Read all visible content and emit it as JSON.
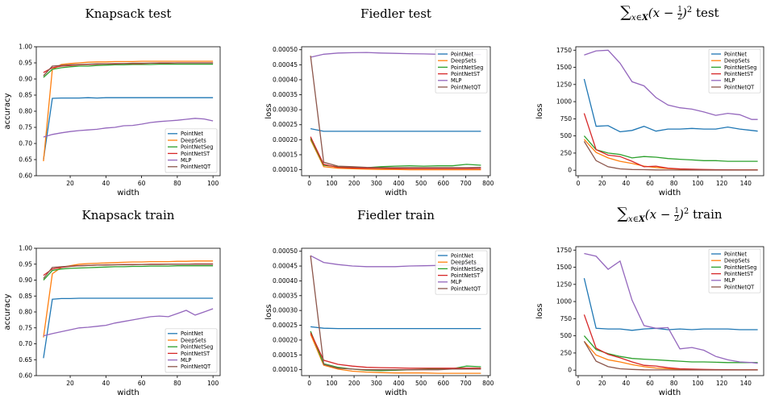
{
  "figure": {
    "colors": {
      "PointNet": "#1f77b4",
      "DeepSets": "#ff7f0e",
      "PointNetSeg": "#2ca02c",
      "PointNetST": "#d62728",
      "MLP": "#9467bd",
      "PointNetQT": "#8c564b"
    }
  },
  "chart_data": [
    {
      "type": "line",
      "title": "Knapsack test",
      "xlabel": "width",
      "ylabel": "accuracy",
      "xlim": [
        1,
        104
      ],
      "ylim": [
        0.6,
        1.0
      ],
      "xticks": [
        20,
        40,
        60,
        80,
        100
      ],
      "yticks": [
        0.6,
        0.65,
        0.7,
        0.75,
        0.8,
        0.85,
        0.9,
        0.95,
        1.0
      ],
      "ytick_labels": [
        "0.60",
        "0.65",
        "0.70",
        "0.75",
        "0.80",
        "0.85",
        "0.90",
        "0.95",
        "1.00"
      ],
      "legend": "lower-right",
      "x": [
        5,
        10,
        15,
        20,
        25,
        30,
        35,
        40,
        45,
        50,
        55,
        60,
        65,
        70,
        75,
        80,
        85,
        90,
        95,
        100
      ],
      "series": [
        {
          "name": "PointNet",
          "values": [
            0.65,
            0.84,
            0.841,
            0.841,
            0.841,
            0.842,
            0.841,
            0.842,
            0.842,
            0.842,
            0.842,
            0.842,
            0.842,
            0.842,
            0.842,
            0.842,
            0.842,
            0.842,
            0.842,
            0.842
          ]
        },
        {
          "name": "DeepSets",
          "values": [
            0.645,
            0.93,
            0.945,
            0.948,
            0.95,
            0.952,
            0.953,
            0.953,
            0.954,
            0.954,
            0.954,
            0.955,
            0.955,
            0.955,
            0.955,
            0.955,
            0.955,
            0.955,
            0.955,
            0.955
          ]
        },
        {
          "name": "PointNetSeg",
          "values": [
            0.905,
            0.93,
            0.935,
            0.938,
            0.94,
            0.94,
            0.942,
            0.943,
            0.944,
            0.944,
            0.945,
            0.945,
            0.945,
            0.946,
            0.946,
            0.946,
            0.946,
            0.946,
            0.946,
            0.946
          ]
        },
        {
          "name": "PointNetST",
          "values": [
            0.92,
            0.935,
            0.94,
            0.942,
            0.944,
            0.945,
            0.946,
            0.947,
            0.947,
            0.948,
            0.948,
            0.948,
            0.949,
            0.949,
            0.949,
            0.95,
            0.95,
            0.95,
            0.95,
            0.95
          ]
        },
        {
          "name": "MLP",
          "values": [
            0.72,
            0.728,
            0.733,
            0.737,
            0.74,
            0.742,
            0.744,
            0.748,
            0.75,
            0.755,
            0.756,
            0.76,
            0.765,
            0.768,
            0.77,
            0.772,
            0.775,
            0.778,
            0.776,
            0.77
          ]
        },
        {
          "name": "PointNetQT",
          "values": [
            0.91,
            0.94,
            0.942,
            0.944,
            0.945,
            0.946,
            0.947,
            0.947,
            0.948,
            0.948,
            0.949,
            0.949,
            0.949,
            0.95,
            0.95,
            0.95,
            0.95,
            0.95,
            0.95,
            0.95
          ]
        }
      ]
    },
    {
      "type": "line",
      "title": "Fiedler test",
      "xlabel": "width",
      "ylabel": "loss",
      "xlim": [
        -35,
        810
      ],
      "ylim": [
        8e-05,
        0.00051
      ],
      "xticks": [
        0,
        100,
        200,
        300,
        400,
        500,
        600,
        700,
        800
      ],
      "yticks": [
        0.0001,
        0.00015,
        0.0002,
        0.00025,
        0.0003,
        0.00035,
        0.0004,
        0.00045,
        0.0005
      ],
      "ytick_labels": [
        "0.00010",
        "0.00015",
        "0.00020",
        "0.00025",
        "0.00030",
        "0.00035",
        "0.00040",
        "0.00045",
        "0.00050"
      ],
      "legend": "upper-right",
      "x": [
        5,
        64,
        128,
        192,
        256,
        320,
        384,
        448,
        512,
        576,
        640,
        704,
        768
      ],
      "series": [
        {
          "name": "PointNet",
          "values": [
            0.000237,
            0.000228,
            0.000228,
            0.000228,
            0.000228,
            0.000228,
            0.000228,
            0.000228,
            0.000228,
            0.000228,
            0.000228,
            0.000228,
            0.000228
          ]
        },
        {
          "name": "DeepSets",
          "values": [
            0.0002,
            0.00011,
            0.000105,
            0.000103,
            0.000102,
            0.000101,
            0.000101,
            0.0001,
            0.0001,
            0.0001,
            0.0001,
            0.0001,
            0.0001
          ]
        },
        {
          "name": "PointNetSeg",
          "values": [
            0.000205,
            0.000115,
            0.00011,
            0.000108,
            0.000107,
            0.00011,
            0.000112,
            0.000113,
            0.000112,
            0.000113,
            0.000113,
            0.000118,
            0.000115
          ]
        },
        {
          "name": "PointNetST",
          "values": [
            0.00021,
            0.000118,
            0.000108,
            0.000106,
            0.000105,
            0.000105,
            0.000104,
            0.000104,
            0.000104,
            0.000104,
            0.000104,
            0.000104,
            0.000104
          ]
        },
        {
          "name": "MLP",
          "values": [
            0.000475,
            0.000485,
            0.000489,
            0.00049,
            0.000491,
            0.000489,
            0.000488,
            0.000487,
            0.000486,
            0.000485,
            0.000485,
            0.000484,
            0.000484
          ]
        },
        {
          "name": "PointNetQT",
          "values": [
            0.00048,
            0.000125,
            0.000112,
            0.00011,
            0.000108,
            0.000107,
            0.000107,
            0.000107,
            0.000107,
            0.000107,
            0.000107,
            0.000107,
            0.000108
          ]
        }
      ]
    },
    {
      "type": "line",
      "title": "test",
      "title_math": "Σ_{x∈X} (x − 1/2)^2",
      "xlabel": "width",
      "ylabel": "loss",
      "xlim": [
        -2,
        155
      ],
      "ylim": [
        -80,
        1800
      ],
      "xticks": [
        0,
        20,
        40,
        60,
        80,
        100,
        120,
        140
      ],
      "yticks": [
        0,
        250,
        500,
        750,
        1000,
        1250,
        1500,
        1750
      ],
      "legend": "upper-right",
      "x": [
        5,
        15,
        25,
        35,
        45,
        55,
        65,
        75,
        85,
        95,
        105,
        115,
        125,
        135,
        145,
        150
      ],
      "series": [
        {
          "name": "PointNet",
          "values": [
            1330,
            640,
            650,
            560,
            580,
            640,
            570,
            600,
            600,
            610,
            600,
            600,
            630,
            600,
            580,
            570
          ]
        },
        {
          "name": "DeepSets",
          "values": [
            450,
            260,
            180,
            130,
            100,
            60,
            40,
            25,
            15,
            10,
            8,
            6,
            5,
            5,
            5,
            5
          ]
        },
        {
          "name": "PointNetSeg",
          "values": [
            500,
            300,
            250,
            230,
            180,
            200,
            190,
            170,
            160,
            150,
            140,
            140,
            130,
            130,
            130,
            130
          ]
        },
        {
          "name": "PointNetST",
          "values": [
            830,
            300,
            220,
            200,
            130,
            50,
            60,
            30,
            20,
            15,
            10,
            8,
            6,
            5,
            5,
            5
          ]
        },
        {
          "name": "MLP",
          "values": [
            1680,
            1740,
            1750,
            1560,
            1290,
            1230,
            1060,
            950,
            910,
            890,
            850,
            800,
            830,
            810,
            740,
            740
          ]
        },
        {
          "name": "PointNetQT",
          "values": [
            420,
            140,
            50,
            20,
            10,
            8,
            5,
            3,
            2,
            2,
            2,
            2,
            2,
            2,
            2,
            2
          ]
        }
      ]
    },
    {
      "type": "line",
      "title": "Knapsack train",
      "xlabel": "width",
      "ylabel": "accuracy",
      "xlim": [
        1,
        104
      ],
      "ylim": [
        0.6,
        1.0
      ],
      "xticks": [
        20,
        40,
        60,
        80,
        100
      ],
      "yticks": [
        0.6,
        0.65,
        0.7,
        0.75,
        0.8,
        0.85,
        0.9,
        0.95,
        1.0
      ],
      "ytick_labels": [
        "0.60",
        "0.65",
        "0.70",
        "0.75",
        "0.80",
        "0.85",
        "0.90",
        "0.95",
        "1.00"
      ],
      "legend": "lower-right",
      "x": [
        5,
        10,
        15,
        20,
        25,
        30,
        35,
        40,
        45,
        50,
        55,
        60,
        65,
        70,
        75,
        80,
        85,
        90,
        95,
        100
      ],
      "series": [
        {
          "name": "PointNet",
          "values": [
            0.655,
            0.84,
            0.842,
            0.842,
            0.843,
            0.843,
            0.843,
            0.843,
            0.843,
            0.843,
            0.843,
            0.843,
            0.843,
            0.843,
            0.843,
            0.843,
            0.843,
            0.843,
            0.843,
            0.843
          ]
        },
        {
          "name": "DeepSets",
          "values": [
            0.72,
            0.92,
            0.94,
            0.945,
            0.95,
            0.952,
            0.953,
            0.954,
            0.955,
            0.956,
            0.957,
            0.957,
            0.958,
            0.958,
            0.958,
            0.959,
            0.959,
            0.96,
            0.96,
            0.96
          ]
        },
        {
          "name": "PointNetSeg",
          "values": [
            0.9,
            0.93,
            0.935,
            0.937,
            0.938,
            0.939,
            0.94,
            0.941,
            0.942,
            0.942,
            0.943,
            0.943,
            0.944,
            0.944,
            0.944,
            0.945,
            0.945,
            0.945,
            0.945,
            0.945
          ]
        },
        {
          "name": "PointNetST",
          "values": [
            0.915,
            0.935,
            0.94,
            0.943,
            0.945,
            0.946,
            0.947,
            0.948,
            0.948,
            0.949,
            0.949,
            0.949,
            0.95,
            0.95,
            0.95,
            0.95,
            0.95,
            0.951,
            0.951,
            0.951
          ]
        },
        {
          "name": "MLP",
          "values": [
            0.725,
            0.732,
            0.738,
            0.744,
            0.75,
            0.752,
            0.755,
            0.758,
            0.765,
            0.77,
            0.775,
            0.78,
            0.785,
            0.787,
            0.785,
            0.795,
            0.805,
            0.79,
            0.8,
            0.81
          ]
        },
        {
          "name": "PointNetQT",
          "values": [
            0.905,
            0.94,
            0.942,
            0.944,
            0.945,
            0.946,
            0.947,
            0.947,
            0.948,
            0.948,
            0.948,
            0.949,
            0.949,
            0.949,
            0.95,
            0.95,
            0.95,
            0.95,
            0.95,
            0.95
          ]
        }
      ]
    },
    {
      "type": "line",
      "title": "Fiedler train",
      "xlabel": "width",
      "ylabel": "loss",
      "xlim": [
        -35,
        810
      ],
      "ylim": [
        8e-05,
        0.00051
      ],
      "xticks": [
        0,
        100,
        200,
        300,
        400,
        500,
        600,
        700,
        800
      ],
      "yticks": [
        0.0001,
        0.00015,
        0.0002,
        0.00025,
        0.0003,
        0.00035,
        0.0004,
        0.00045,
        0.0005
      ],
      "ytick_labels": [
        "0.00010",
        "0.00015",
        "0.00020",
        "0.00025",
        "0.00030",
        "0.00035",
        "0.00040",
        "0.00045",
        "0.00050"
      ],
      "legend": "upper-right",
      "x": [
        5,
        64,
        128,
        192,
        256,
        320,
        384,
        448,
        512,
        576,
        640,
        704,
        768
      ],
      "series": [
        {
          "name": "PointNet",
          "values": [
            0.000245,
            0.00024,
            0.000239,
            0.000239,
            0.000239,
            0.000239,
            0.000239,
            0.000239,
            0.000239,
            0.000239,
            0.000239,
            0.000239,
            0.000239
          ]
        },
        {
          "name": "DeepSets",
          "values": [
            0.00022,
            0.000115,
            0.000102,
            9.5e-05,
            9.2e-05,
            9e-05,
            8.9e-05,
            8.9e-05,
            8.9e-05,
            8.8e-05,
            8.8e-05,
            8.8e-05,
            8.8e-05
          ]
        },
        {
          "name": "PointNetSeg",
          "values": [
            0.00023,
            0.00012,
            0.000108,
            0.000102,
            9.8e-05,
            9.7e-05,
            9.8e-05,
            0.0001,
            0.000101,
            0.000102,
            0.000103,
            0.000112,
            0.00011
          ]
        },
        {
          "name": "PointNetST",
          "values": [
            0.000225,
            0.000132,
            0.000118,
            0.000112,
            0.000108,
            0.000107,
            0.000106,
            0.000105,
            0.000105,
            0.000105,
            0.000105,
            0.000105,
            0.000105
          ]
        },
        {
          "name": "MLP",
          "values": [
            0.000485,
            0.000462,
            0.000455,
            0.00045,
            0.000448,
            0.000448,
            0.000448,
            0.00045,
            0.000451,
            0.000452,
            0.000453,
            0.000455,
            0.000455
          ]
        },
        {
          "name": "PointNetQT",
          "values": [
            0.000485,
            0.000118,
            0.000105,
            0.000102,
            0.0001,
            0.0001,
            0.0001,
            0.0001,
            0.0001,
            0.0001,
            0.000102,
            0.000102,
            0.000102
          ]
        }
      ]
    },
    {
      "type": "line",
      "title": "train",
      "title_math": "Σ_{x∈X} (x − 1/2)^2",
      "xlabel": "width",
      "ylabel": "loss",
      "xlim": [
        -2,
        155
      ],
      "ylim": [
        -80,
        1800
      ],
      "xticks": [
        0,
        20,
        40,
        60,
        80,
        100,
        120,
        140
      ],
      "yticks": [
        0,
        250,
        500,
        750,
        1000,
        1250,
        1500,
        1750
      ],
      "legend": "upper-right",
      "x": [
        5,
        15,
        25,
        35,
        45,
        55,
        65,
        75,
        85,
        95,
        105,
        115,
        125,
        135,
        145,
        150
      ],
      "series": [
        {
          "name": "PointNet",
          "values": [
            1340,
            610,
            600,
            600,
            580,
            600,
            610,
            590,
            600,
            590,
            600,
            600,
            600,
            590,
            590,
            590
          ]
        },
        {
          "name": "DeepSets",
          "values": [
            420,
            220,
            150,
            120,
            80,
            50,
            30,
            20,
            10,
            8,
            5,
            5,
            4,
            4,
            4,
            4
          ]
        },
        {
          "name": "PointNetSeg",
          "values": [
            500,
            300,
            240,
            200,
            170,
            160,
            150,
            140,
            130,
            120,
            120,
            115,
            110,
            110,
            110,
            110
          ]
        },
        {
          "name": "PointNetST",
          "values": [
            810,
            320,
            230,
            180,
            120,
            70,
            60,
            35,
            20,
            15,
            10,
            8,
            6,
            5,
            5,
            5
          ]
        },
        {
          "name": "MLP",
          "values": [
            1700,
            1660,
            1470,
            1590,
            1020,
            650,
            610,
            620,
            310,
            330,
            290,
            200,
            150,
            120,
            110,
            100
          ]
        },
        {
          "name": "PointNetQT",
          "values": [
            420,
            130,
            50,
            20,
            10,
            5,
            4,
            3,
            2,
            2,
            2,
            2,
            2,
            2,
            2,
            2
          ]
        }
      ]
    }
  ]
}
